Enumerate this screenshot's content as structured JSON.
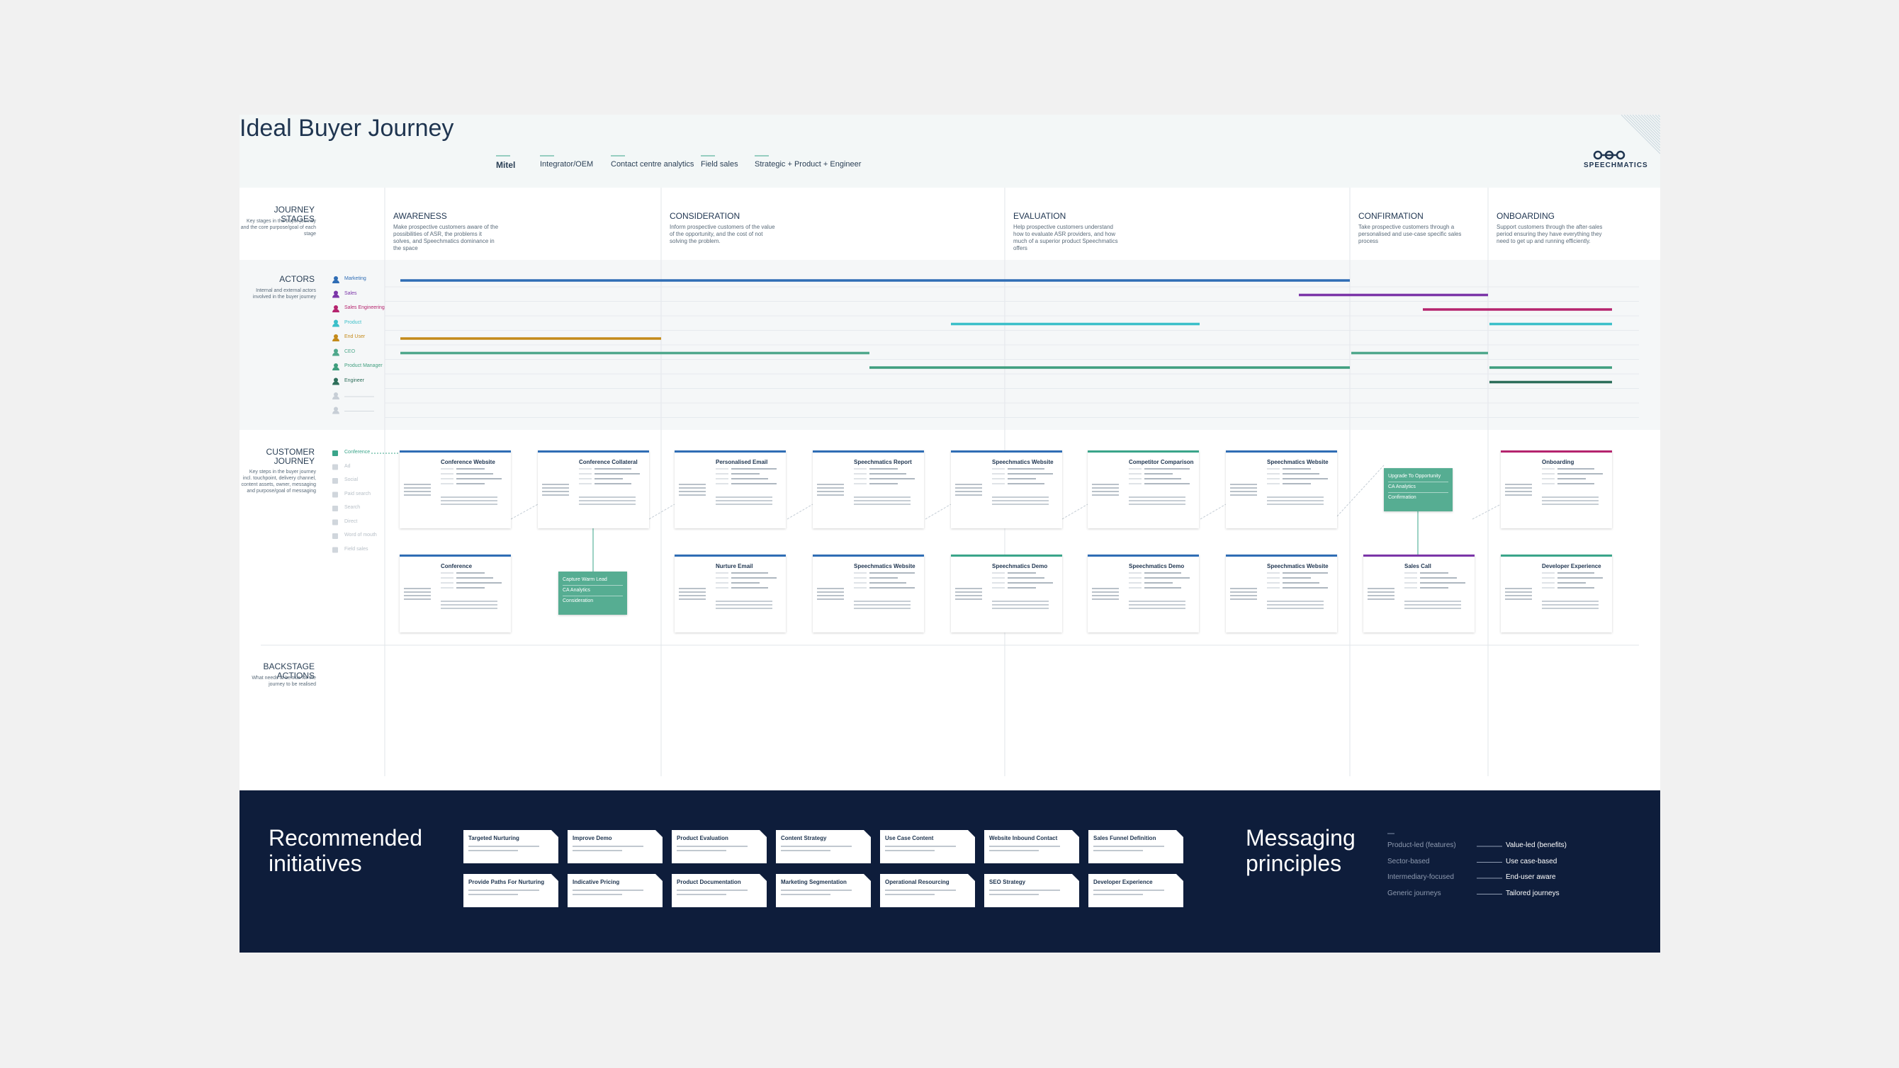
{
  "header": {
    "title": "Ideal Buyer Journey",
    "legend": [
      "Mitel",
      "Integrator/OEM",
      "Contact centre analytics",
      "Field sales",
      "Strategic + Product + Engineer"
    ],
    "logo": "SPEECHMATICS"
  },
  "sections": [
    {
      "title": "JOURNEY STAGES",
      "text": "Key stages in the buyer journey and the core purpose/goal of each stage"
    },
    {
      "title": "ACTORS",
      "text": "Internal and external actors involved in the buyer journey"
    },
    {
      "title": "CUSTOMER JOURNEY",
      "text": "Key steps in the buyer journey incl. touchpoint, delivery channel, content assets, owner, messaging and purpose/goal of messaging"
    },
    {
      "title": "BACKSTAGE ACTIONS",
      "text": "What needs to be true for the journey to be realised"
    }
  ],
  "stages": [
    {
      "name": "AWARENESS",
      "text": "Make prospective customers aware of the possibilities of ASR, the problems it solves, and Speechmatics dominance in the space"
    },
    {
      "name": "CONSIDERATION",
      "text": "Inform prospective customers of the value of the opportunity, and the cost of not solving the problem."
    },
    {
      "name": "EVALUATION",
      "text": "Help prospective customers understand how to evaluate ASR providers, and how much of a superior product Speechmatics offers"
    },
    {
      "name": "CONFIRMATION",
      "text": "Take prospective customers through a personalised and use-case specific sales process"
    },
    {
      "name": "ONBOARDING",
      "text": "Support customers through the after-sales period ensuring they have everything they need to get up and running efficiently."
    }
  ],
  "actors": [
    "Marketing",
    "Sales",
    "Sales Engineering",
    "Product",
    "End User",
    "CEO",
    "Product Manager",
    "Engineer"
  ],
  "touchpoints": [
    "Conference",
    "Ad",
    "Social",
    "Paid search",
    "Search",
    "Direct",
    "Word of mouth",
    "Field sales"
  ],
  "cards": {
    "top": [
      "Conference Website",
      "Conference Collateral",
      "Personalised Email",
      "Speechmatics Report",
      "Speechmatics Website",
      "Competitor Comparison",
      "Speechmatics Website",
      "Onboarding"
    ],
    "bottom": [
      "Conference",
      "Nurture Email",
      "Speechmatics Website",
      "Speechmatics Demo",
      "Speechmatics Demo",
      "Speechmatics Website",
      "Sales Call",
      "Developer Experience"
    ]
  },
  "milestones": [
    [
      "Upgrade To Opportunity",
      "CA Analytics",
      "Confirmation"
    ],
    [
      "Capture Warm Lead",
      "CA Analytics",
      "Consideration"
    ]
  ],
  "initiatives": {
    "title": "Recommended initiatives",
    "items": [
      "Targeted Nurturing",
      "Improve Demo",
      "Product Evaluation",
      "Content Strategy",
      "Use Case Content",
      "Website Inbound Contact",
      "Sales Funnel Definition",
      "Provide Paths For Nurturing",
      "Indicative Pricing",
      "Product Documentation",
      "Marketing Segmentation",
      "Operational Resourcing",
      "SEO Strategy",
      "Developer Experience"
    ]
  },
  "messaging": {
    "title": "Messaging principles",
    "pairs": [
      [
        "Product-led (features)",
        "Value-led (benefits)"
      ],
      [
        "Sector-based",
        "Use case-based"
      ],
      [
        "Intermediary-focused",
        "End-user aware"
      ],
      [
        "Generic journeys",
        "Tailored journeys"
      ]
    ]
  }
}
